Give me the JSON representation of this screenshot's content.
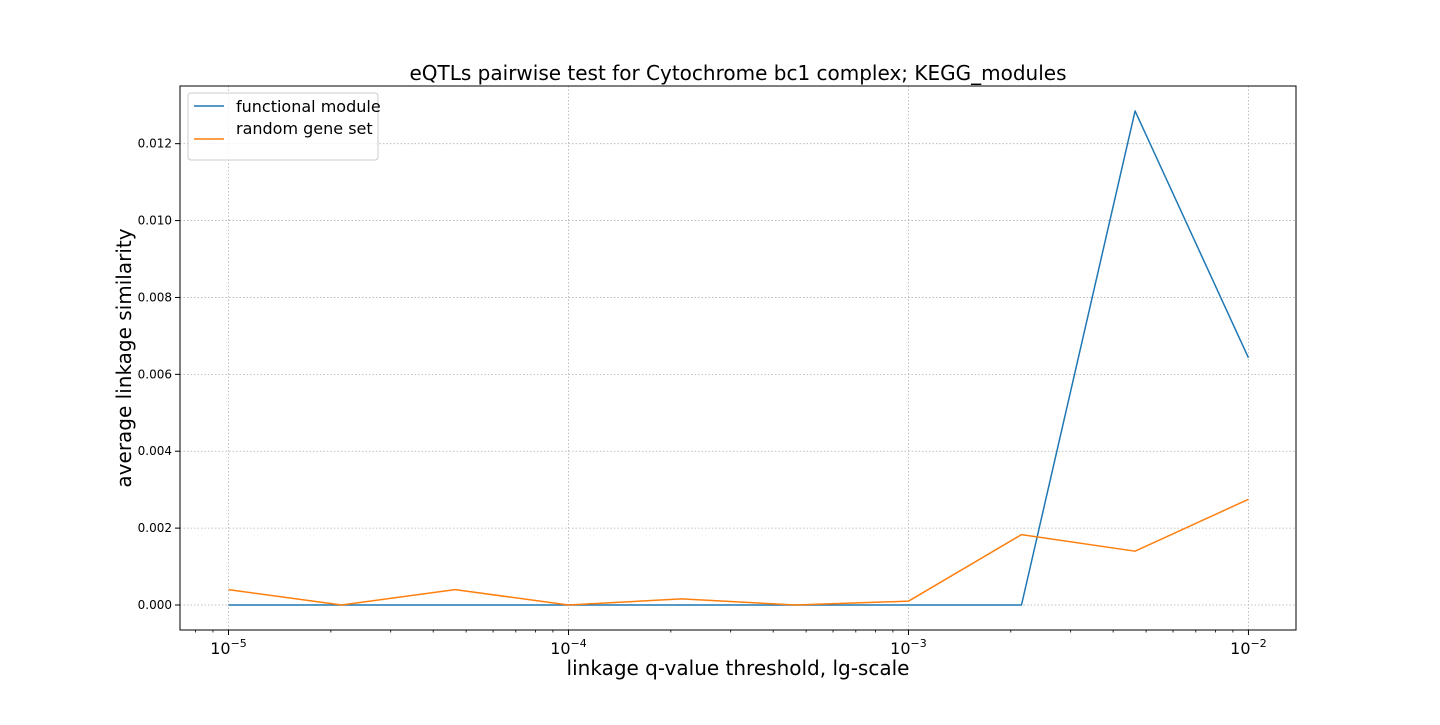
{
  "chart_data": {
    "type": "line",
    "title": "eQTLs pairwise test for Cytochrome bc1 complex; KEGG_modules",
    "xlabel": "linkage q-value threshold, lg-scale",
    "ylabel": "average linkage similarity",
    "xscale": "log10",
    "xlim": [
      7.2e-06,
      0.0138
    ],
    "ylim": [
      -0.00065,
      0.0135
    ],
    "grid": true,
    "legend_position": "top-left",
    "x": [
      1e-05,
      2.15e-05,
      4.64e-05,
      0.0001,
      0.000215,
      0.000464,
      0.001,
      0.00215,
      0.00464,
      0.01
    ],
    "x_ticks": [
      {
        "value": 1e-05,
        "base": "10",
        "exp": "−5"
      },
      {
        "value": 0.0001,
        "base": "10",
        "exp": "−4"
      },
      {
        "value": 0.001,
        "base": "10",
        "exp": "−3"
      },
      {
        "value": 0.01,
        "base": "10",
        "exp": "−2"
      }
    ],
    "y_ticks": [
      {
        "value": 0.0,
        "label": "0.000"
      },
      {
        "value": 0.002,
        "label": "0.002"
      },
      {
        "value": 0.004,
        "label": "0.004"
      },
      {
        "value": 0.006,
        "label": "0.006"
      },
      {
        "value": 0.008,
        "label": "0.008"
      },
      {
        "value": 0.01,
        "label": "0.010"
      },
      {
        "value": 0.012,
        "label": "0.012"
      }
    ],
    "series": [
      {
        "name": "functional module",
        "color": "#1f77b4",
        "values": [
          0.0,
          0.0,
          0.0,
          0.0,
          0.0,
          0.0,
          0.0,
          0.0,
          0.01285,
          0.00643
        ]
      },
      {
        "name": "random gene set",
        "color": "#ff7f0e",
        "values": [
          0.0004,
          0.0,
          0.0004,
          0.0,
          0.00016,
          0.0,
          0.0001,
          0.00183,
          0.0014,
          0.00275
        ]
      }
    ]
  }
}
